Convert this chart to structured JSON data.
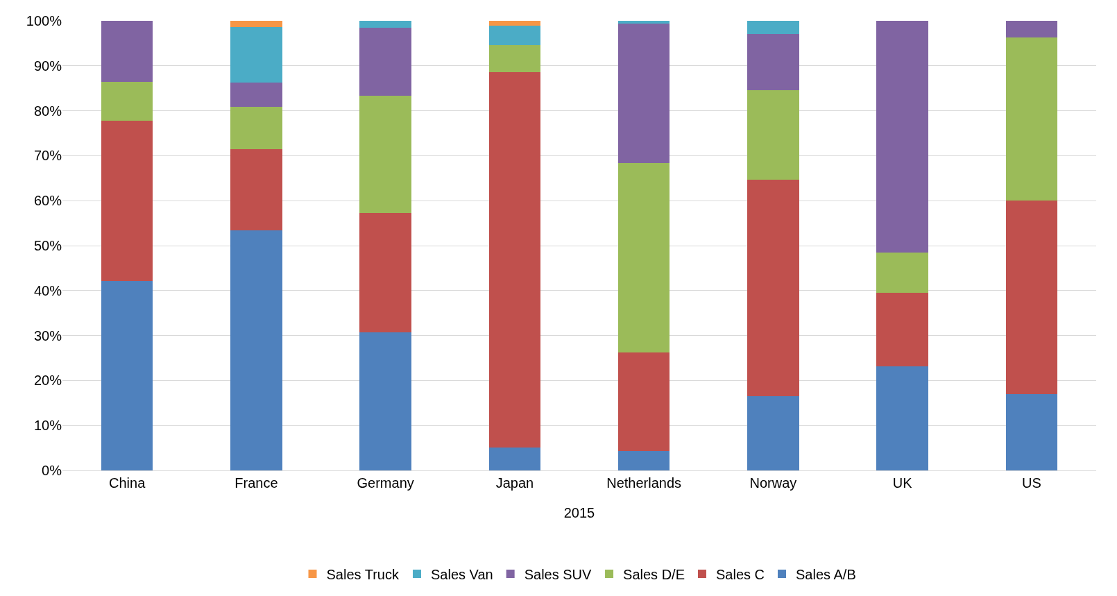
{
  "chart_data": {
    "type": "bar",
    "stacked": true,
    "xlabel": "2015",
    "categories": [
      "China",
      "France",
      "Germany",
      "Japan",
      "Netherlands",
      "Norway",
      "UK",
      "US"
    ],
    "series": [
      {
        "name": "Sales A/B",
        "color": "#4f81bd",
        "values": [
          42.2,
          53.4,
          30.7,
          5.1,
          4.3,
          16.5,
          23.2,
          17.0
        ]
      },
      {
        "name": "Sales C",
        "color": "#c0504d",
        "values": [
          35.6,
          18.1,
          26.6,
          83.5,
          21.9,
          48.1,
          16.3,
          43.0
        ]
      },
      {
        "name": "Sales D/E",
        "color": "#9bbb59",
        "values": [
          8.6,
          9.3,
          26.1,
          6.0,
          42.1,
          19.9,
          9.0,
          36.3
        ]
      },
      {
        "name": "Sales SUV",
        "color": "#8064a2",
        "values": [
          13.6,
          5.4,
          15.0,
          0,
          31.1,
          12.6,
          51.5,
          3.7
        ]
      },
      {
        "name": "Sales Van",
        "color": "#4bacc6",
        "values": [
          0,
          12.4,
          1.6,
          4.3,
          0.6,
          2.9,
          0,
          0
        ]
      },
      {
        "name": "Sales Truck",
        "color": "#f79646",
        "values": [
          0,
          1.4,
          0,
          1.1,
          0,
          0,
          0,
          0
        ]
      }
    ],
    "ylim": [
      0,
      100
    ],
    "yticks": [
      {
        "value": 0,
        "label": "0%"
      },
      {
        "value": 10,
        "label": "10%"
      },
      {
        "value": 20,
        "label": "20%"
      },
      {
        "value": 30,
        "label": "30%"
      },
      {
        "value": 40,
        "label": "40%"
      },
      {
        "value": 50,
        "label": "50%"
      },
      {
        "value": 60,
        "label": "60%"
      },
      {
        "value": 70,
        "label": "70%"
      },
      {
        "value": 80,
        "label": "80%"
      },
      {
        "value": 90,
        "label": "90%"
      },
      {
        "value": 100,
        "label": "100%"
      }
    ],
    "grid": "y",
    "legend": "bottom"
  }
}
